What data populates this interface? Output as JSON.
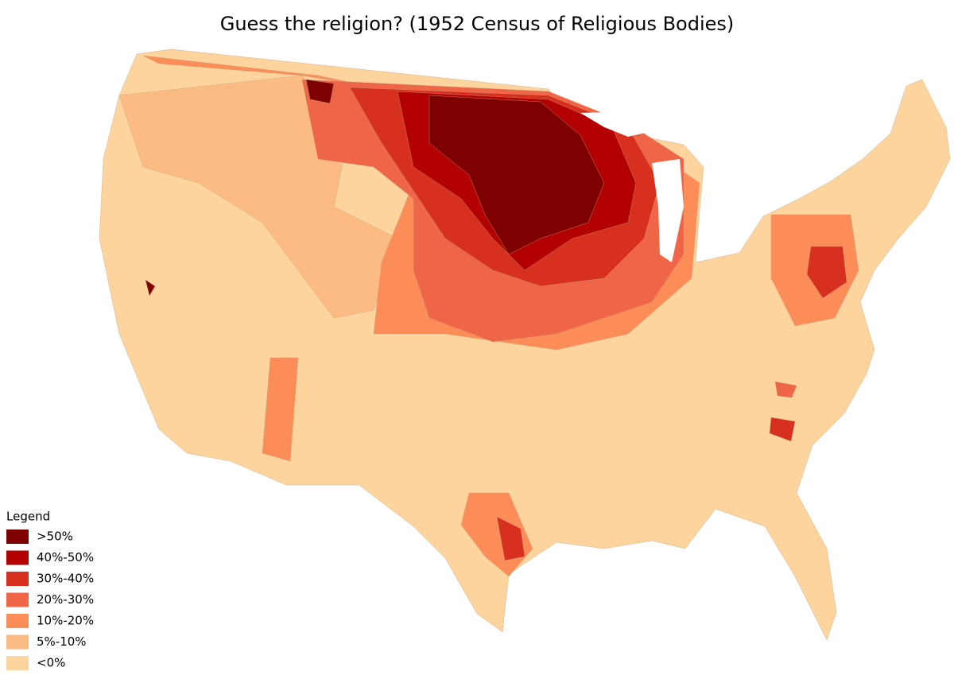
{
  "title": "Guess the religion? (1952 Census of Religious Bodies)",
  "legend": {
    "title": "Legend",
    "items": [
      {
        "label": ">50%",
        "color": "#7f0000"
      },
      {
        "label": "40%-50%",
        "color": "#b30000"
      },
      {
        "label": "30%-40%",
        "color": "#d7301f"
      },
      {
        "label": "20%-30%",
        "color": "#ef6548"
      },
      {
        "label": "10%-20%",
        "color": "#fc8d59"
      },
      {
        "label": "5%-10%",
        "color": "#fdbb84"
      },
      {
        "label": "<0%",
        "color": "#fdd49e"
      }
    ]
  }
}
